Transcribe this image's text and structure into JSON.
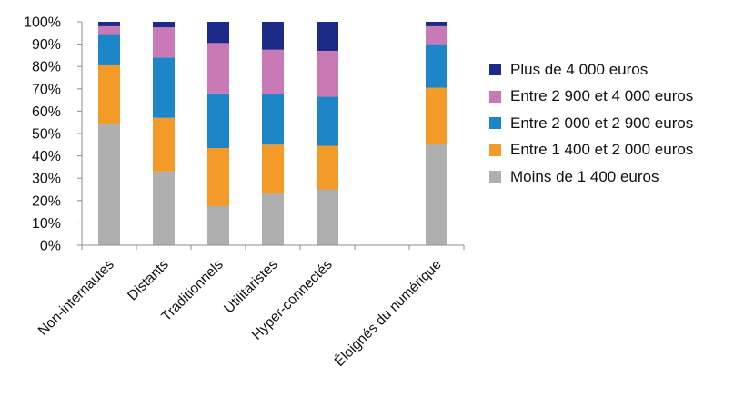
{
  "chart_data": {
    "type": "bar",
    "stacked": true,
    "title": "",
    "xlabel": "",
    "ylabel": "",
    "ylim": [
      0,
      100
    ],
    "yticks": [
      "0%",
      "10%",
      "20%",
      "30%",
      "40%",
      "50%",
      "60%",
      "70%",
      "80%",
      "90%",
      "100%"
    ],
    "categories": [
      "Non-internautes",
      "Distants",
      "Traditionnels",
      "Utilitaristes",
      "Hyper-connectés",
      "",
      "Éloignés du numérique"
    ],
    "series": [
      {
        "name": "Moins de 1 400 euros",
        "color": "#afafaf",
        "values": [
          54.5,
          33,
          17.5,
          23,
          25,
          null,
          45.5
        ]
      },
      {
        "name": "Entre 1 400 et 2 000 euros",
        "color": "#f39a29",
        "values": [
          26,
          24,
          26,
          22,
          19.5,
          null,
          25
        ]
      },
      {
        "name": "Entre 2 000 et 2 900 euros",
        "color": "#1c86c9",
        "values": [
          14,
          27,
          24.5,
          22.5,
          22,
          null,
          19.5
        ]
      },
      {
        "name": "Entre 2 900 et 4 000 euros",
        "color": "#c879b6",
        "values": [
          3.5,
          13.5,
          22.5,
          20,
          20.5,
          null,
          8
        ]
      },
      {
        "name": "Plus de 4 000 euros",
        "color": "#1b2b87",
        "values": [
          2,
          2.5,
          9.5,
          12.5,
          13,
          null,
          2
        ]
      }
    ],
    "legend_position": "right",
    "legend_order": [
      "Plus de 4 000 euros",
      "Entre 2 900 et 4 000 euros",
      "Entre 2 000 et 2 900 euros",
      "Entre 1 400 et 2 000 euros",
      "Moins de 1 400 euros"
    ],
    "grid": false
  }
}
